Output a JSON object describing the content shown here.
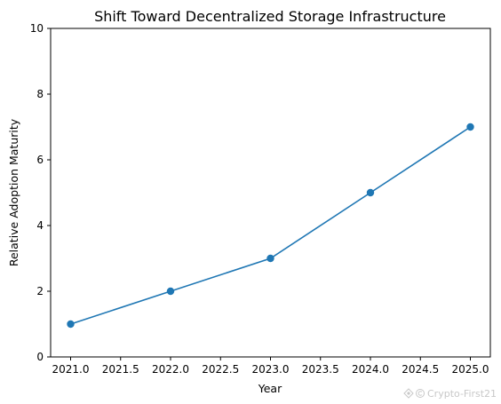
{
  "chart_data": {
    "type": "line",
    "title": "Shift Toward Decentralized Storage Infrastructure",
    "xlabel": "Year",
    "ylabel": "Relative Adoption Maturity",
    "x": [
      2021,
      2022,
      2023,
      2024,
      2025
    ],
    "series": [
      {
        "values": [
          1,
          2,
          3,
          5,
          7
        ],
        "color": "#1f77b4",
        "marker": "circle"
      }
    ],
    "xlim": [
      2020.8,
      2025.2
    ],
    "ylim": [
      0,
      10
    ],
    "xticks": [
      2021.0,
      2021.5,
      2022.0,
      2022.5,
      2023.0,
      2023.5,
      2024.0,
      2024.5,
      2025.0
    ],
    "xtick_labels": [
      "2021.0",
      "2021.5",
      "2022.0",
      "2022.5",
      "2023.0",
      "2023.5",
      "2024.0",
      "2024.5",
      "2025.0"
    ],
    "yticks": [
      0,
      2,
      4,
      6,
      8,
      10
    ],
    "ytick_labels": [
      "0",
      "2",
      "4",
      "6",
      "8",
      "10"
    ],
    "grid": false,
    "legend": false
  },
  "watermark": {
    "text": "Crypto-First21",
    "icon": "watermark-logo-icon"
  }
}
